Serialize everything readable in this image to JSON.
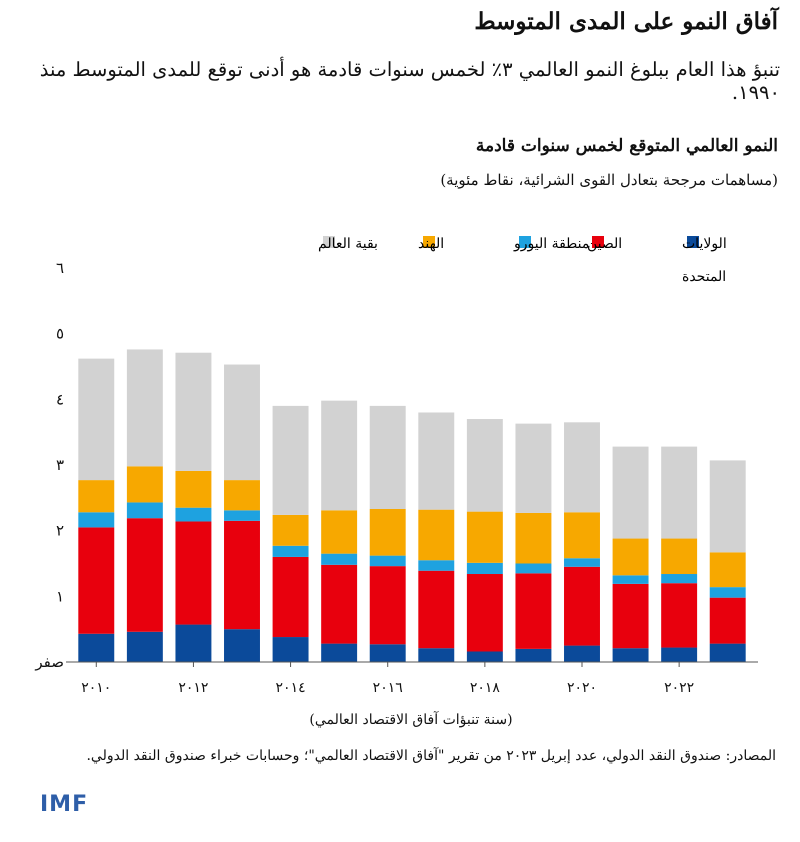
{
  "header": {
    "title": "آفاق النمو على المدى المتوسط",
    "subtitle": "تنبؤ هذا العام ببلوغ النمو العالمي ٣٪ لخمس سنوات قادمة هو أدنى توقع للمدى المتوسط منذ ١٩٩٠."
  },
  "chart_data": {
    "type": "bar",
    "stacked": true,
    "title": "النمو العالمي المتوقع لخمس سنوات قادمة",
    "subtitle": "(مساهمات مرجحة بتعادل القوى الشرائية، نقاط مئوية)",
    "xlabel": "(سنة تنبؤات آفاق الاقتصاد العالمي)",
    "ylabel": "",
    "ylim": [
      0,
      6
    ],
    "yticks": [
      {
        "value": 0,
        "label": "صفر"
      },
      {
        "value": 1,
        "label": "١"
      },
      {
        "value": 2,
        "label": "٢"
      },
      {
        "value": 3,
        "label": "٣"
      },
      {
        "value": 4,
        "label": "٤"
      },
      {
        "value": 5,
        "label": "٥"
      },
      {
        "value": 6,
        "label": "٦"
      }
    ],
    "categories": [
      2010,
      2011,
      2012,
      2013,
      2014,
      2015,
      2016,
      2017,
      2018,
      2019,
      2020,
      2021,
      2022,
      2023
    ],
    "xtick_labels": [
      {
        "category": 2010,
        "label": "٢٠١٠"
      },
      {
        "category": 2012,
        "label": "٢٠١٢"
      },
      {
        "category": 2014,
        "label": "٢٠١٤"
      },
      {
        "category": 2016,
        "label": "٢٠١٦"
      },
      {
        "category": 2018,
        "label": "٢٠١٨"
      },
      {
        "category": 2020,
        "label": "٢٠٢٠"
      },
      {
        "category": 2022,
        "label": "٢٠٢٢"
      }
    ],
    "grid": false,
    "legend_position": "top",
    "series": [
      {
        "name": "الولايات المتحدة",
        "color": "#0b4a9a",
        "values": [
          0.43,
          0.46,
          0.57,
          0.5,
          0.38,
          0.28,
          0.27,
          0.21,
          0.16,
          0.2,
          0.25,
          0.21,
          0.22,
          0.28
        ]
      },
      {
        "name": "الصين",
        "color": "#e8000d",
        "values": [
          1.62,
          1.73,
          1.57,
          1.65,
          1.22,
          1.2,
          1.19,
          1.18,
          1.18,
          1.15,
          1.2,
          0.98,
          0.98,
          0.7
        ]
      },
      {
        "name": "منطقة اليورو",
        "color": "#1ea2e0",
        "values": [
          0.23,
          0.24,
          0.21,
          0.16,
          0.17,
          0.17,
          0.16,
          0.16,
          0.17,
          0.15,
          0.13,
          0.13,
          0.14,
          0.16
        ]
      },
      {
        "name": "الهند",
        "color": "#f7a800",
        "values": [
          0.49,
          0.55,
          0.56,
          0.46,
          0.47,
          0.66,
          0.71,
          0.77,
          0.78,
          0.77,
          0.7,
          0.56,
          0.54,
          0.53
        ]
      },
      {
        "name": "بقية العالم",
        "color": "#d2d2d2",
        "values": [
          1.85,
          1.78,
          1.8,
          1.76,
          1.66,
          1.67,
          1.57,
          1.48,
          1.41,
          1.36,
          1.37,
          1.4,
          1.4,
          1.4
        ]
      }
    ]
  },
  "source": "المصادر: صندوق النقد الدولي، عدد إبريل ٢٠٢٣ من تقرير \"آفاق الاقتصاد العالمي\"؛ وحسابات خبراء صندوق النقد الدولي.",
  "logo": "IMF"
}
